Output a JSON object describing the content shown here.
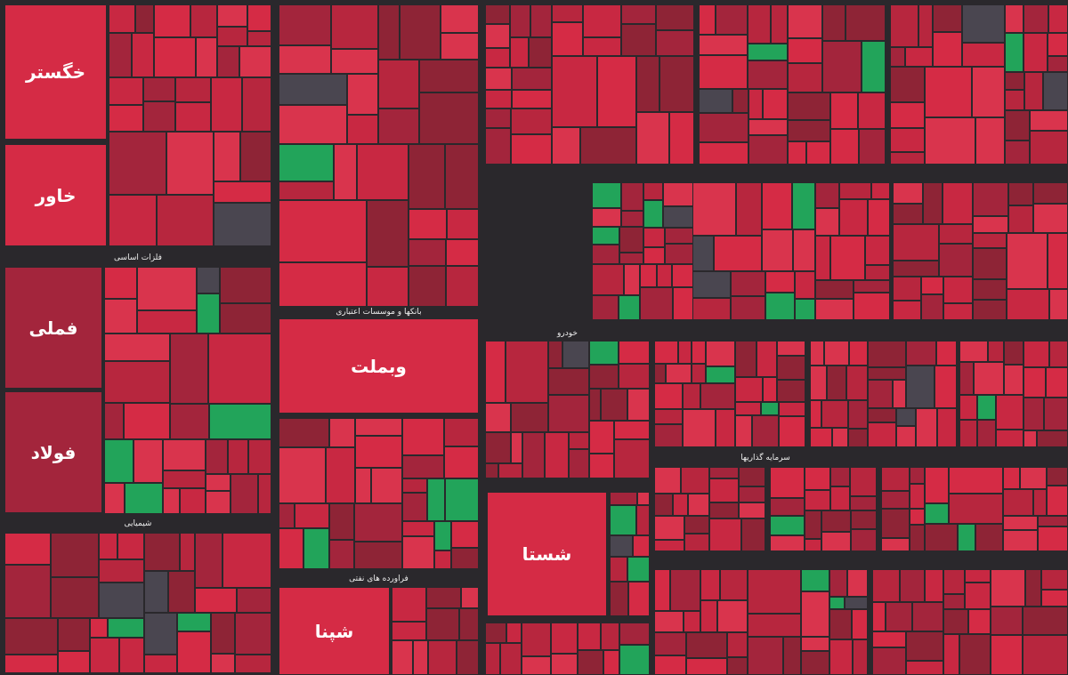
{
  "tiles": [
    {
      "label": "خگستر"
    },
    {
      "label": "خاور"
    },
    {
      "label": "فملی"
    },
    {
      "label": "فولاد"
    },
    {
      "label": "وبملت"
    },
    {
      "label": "شستا"
    },
    {
      "label": "شپنا"
    }
  ],
  "sectors": [
    {
      "label": "فلزات اساسی"
    },
    {
      "label": "شیمیایی"
    },
    {
      "label": "بانکها و موسسات اعتباری"
    },
    {
      "label": "فراورده های نفتی"
    },
    {
      "label": "خودرو"
    },
    {
      "label": "سرمایه گذاریها"
    }
  ]
}
